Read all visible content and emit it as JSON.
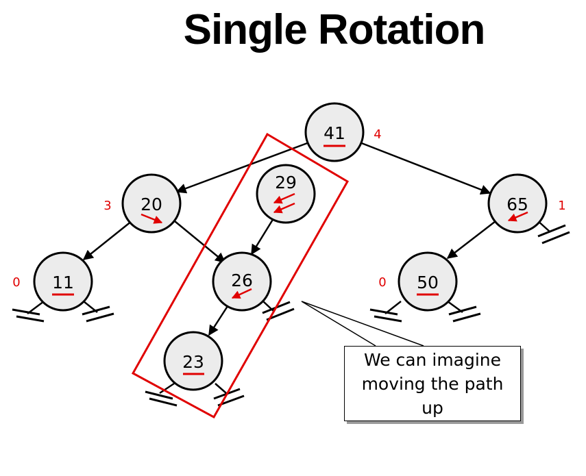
{
  "title": "Single Rotation",
  "nodes": [
    {
      "id": "n41",
      "key": "41",
      "height": "4"
    },
    {
      "id": "n20",
      "key": "20",
      "height": "3"
    },
    {
      "id": "n29",
      "key": "29"
    },
    {
      "id": "n65",
      "key": "65",
      "height": "1"
    },
    {
      "id": "n11",
      "key": "11",
      "height": "0"
    },
    {
      "id": "n26",
      "key": "26"
    },
    {
      "id": "n50",
      "key": "50",
      "height": "0"
    },
    {
      "id": "n23",
      "key": "23"
    }
  ],
  "callout": {
    "lines": [
      "We can imagine",
      "moving the path",
      "up"
    ]
  },
  "colors": {
    "accent": "#e00000",
    "node_fill": "#ececec",
    "line": "#000000"
  }
}
